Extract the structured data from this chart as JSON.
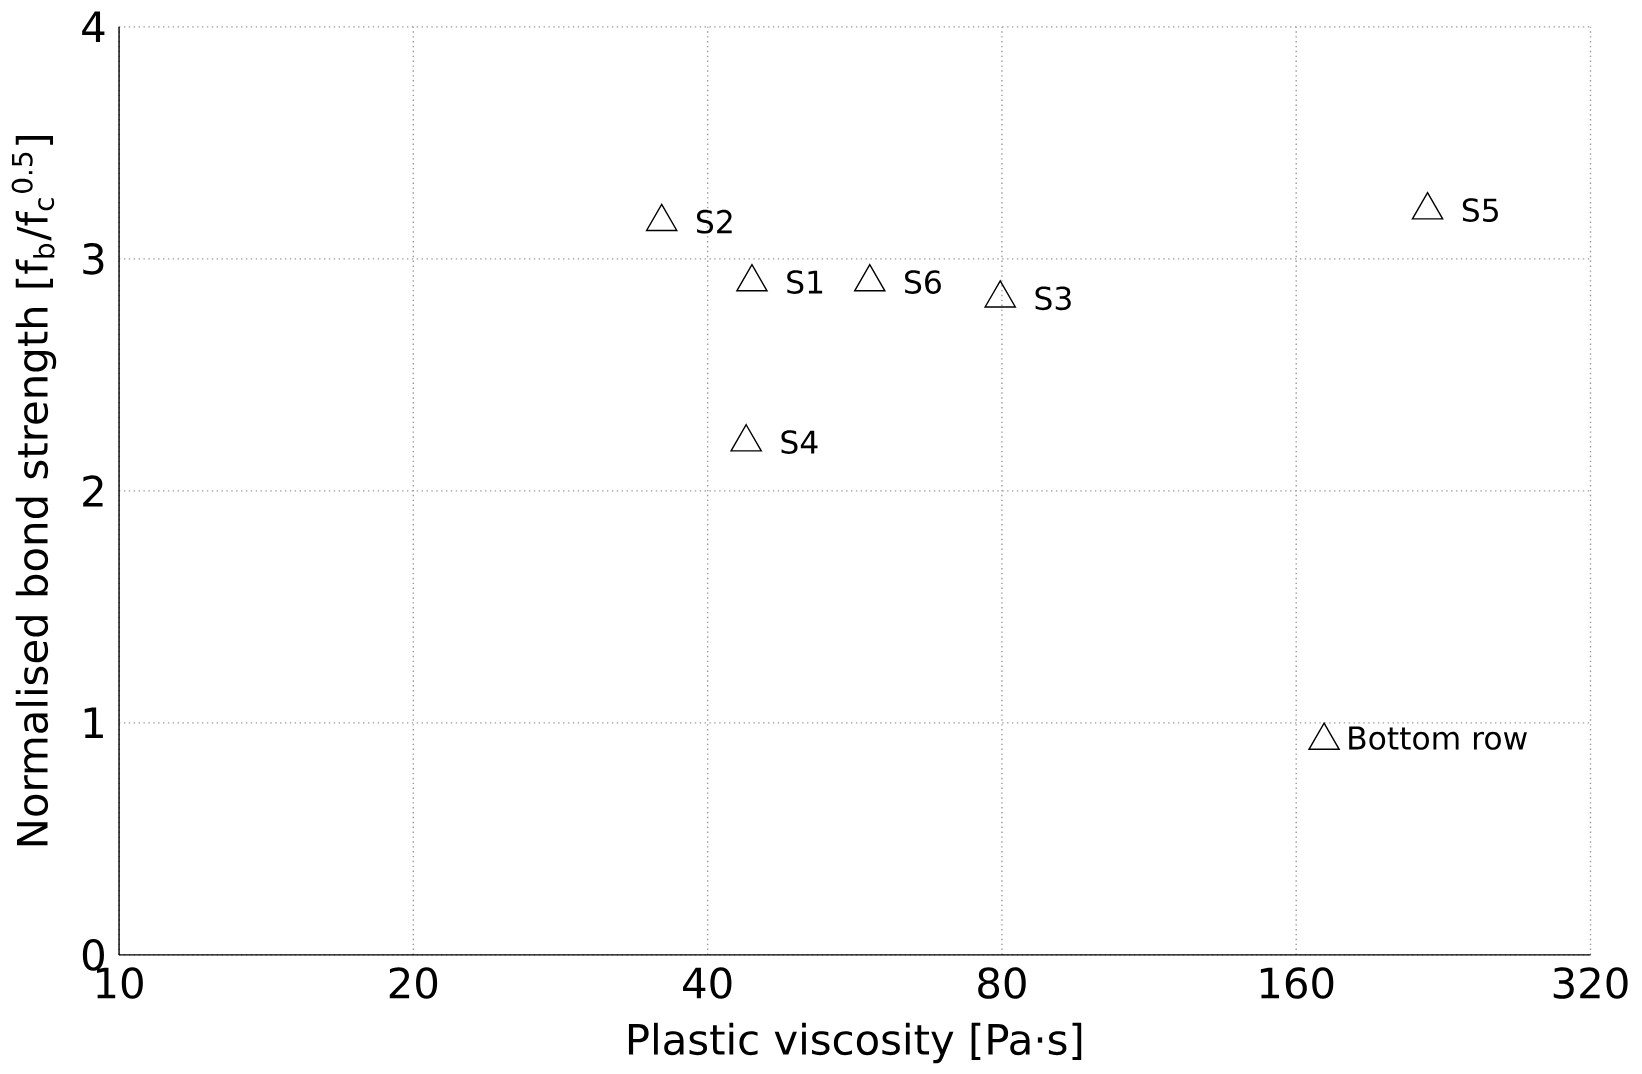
{
  "chart_data": {
    "type": "scatter",
    "xlabel": "Plastic viscosity [Pa·s]",
    "ylabel": "Normalised bond strength [f$_{b}$/f$_{c}$$^{0.5}$]",
    "log": "x",
    "xlim": [
      10,
      320
    ],
    "ylim": [
      0,
      4
    ],
    "xticks": [
      10,
      20,
      40,
      80,
      160,
      320
    ],
    "yticks": [
      0,
      1,
      2,
      3,
      4
    ],
    "grid": true,
    "legend": "bottom right",
    "marker": "triangle",
    "series": [
      {
        "name": "Bottom row",
        "color": "#000000",
        "x": [
          44.4,
          35.9,
          79.7,
          43.8,
          218,
          58.6
        ],
        "values": [
          2.9,
          3.16,
          2.83,
          2.21,
          3.21,
          2.9
        ]
      }
    ],
    "annotations": [
      {
        "text": "S1",
        "x": 44.4,
        "y": 2.9
      },
      {
        "text": "S2",
        "x": 35.9,
        "y": 3.16
      },
      {
        "text": "S3",
        "x": 79.7,
        "y": 2.83
      },
      {
        "text": "S4",
        "x": 43.8,
        "y": 2.21
      },
      {
        "text": "S5",
        "x": 218,
        "y": 3.21
      },
      {
        "text": "S6",
        "x": 58.6,
        "y": 2.9
      }
    ]
  }
}
